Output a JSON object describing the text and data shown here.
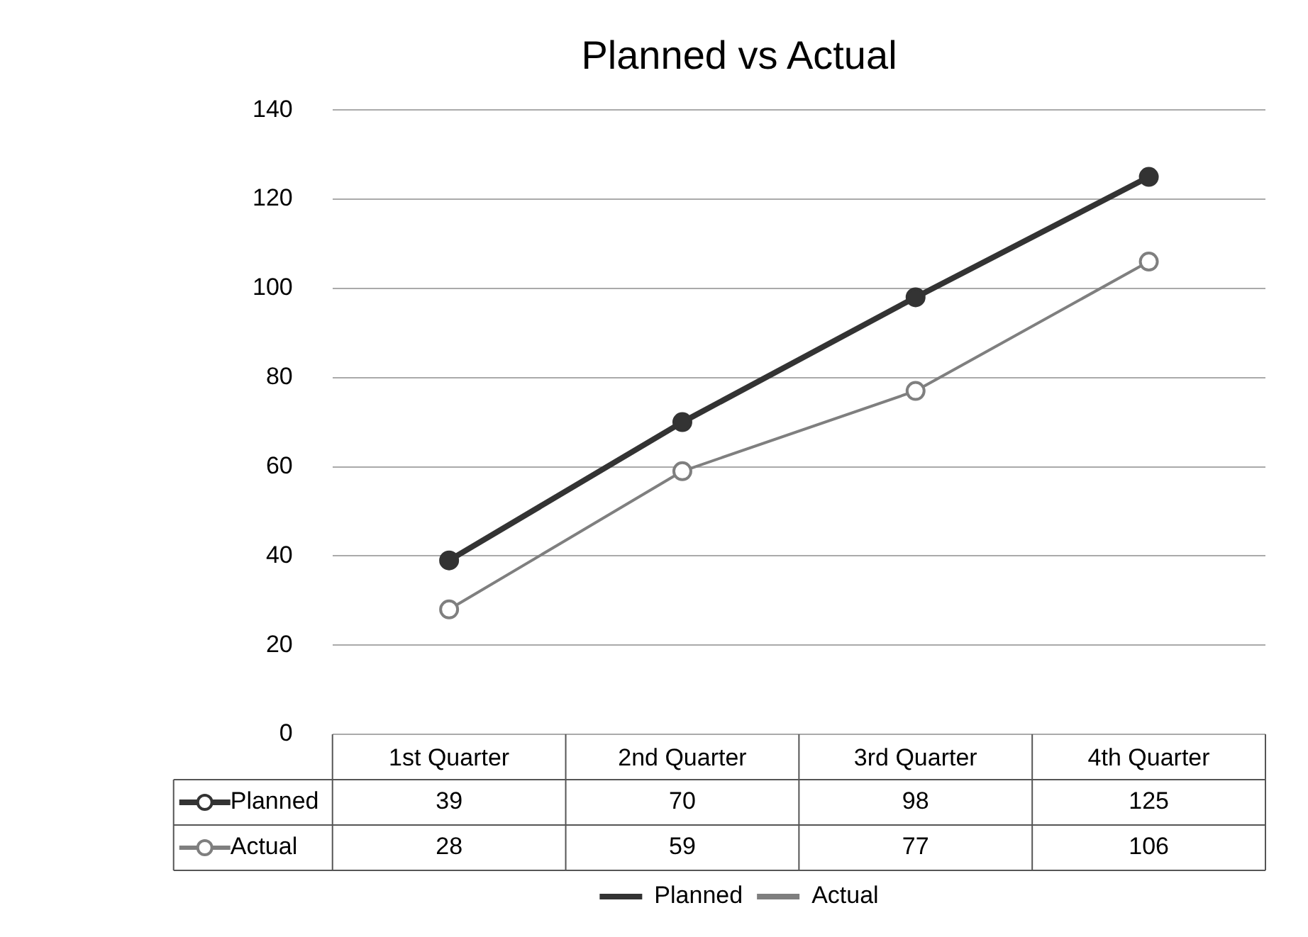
{
  "chart_data": {
    "type": "line",
    "title": "Planned vs Actual",
    "categories": [
      "1st Quarter",
      "2nd Quarter",
      "3rd Quarter",
      "4th Quarter"
    ],
    "series": [
      {
        "name": "Planned",
        "color": "#333333",
        "values": [
          39,
          70,
          98,
          125
        ]
      },
      {
        "name": "Actual",
        "color": "#7f7f7f",
        "values": [
          28,
          59,
          77,
          106
        ]
      }
    ],
    "ylim": [
      0,
      140
    ],
    "yticks": [
      0,
      20,
      40,
      60,
      80,
      100,
      120,
      140
    ],
    "grid": "y",
    "legend": "bottom",
    "marker": "circle",
    "line_style": "solid",
    "data_labels": true
  }
}
